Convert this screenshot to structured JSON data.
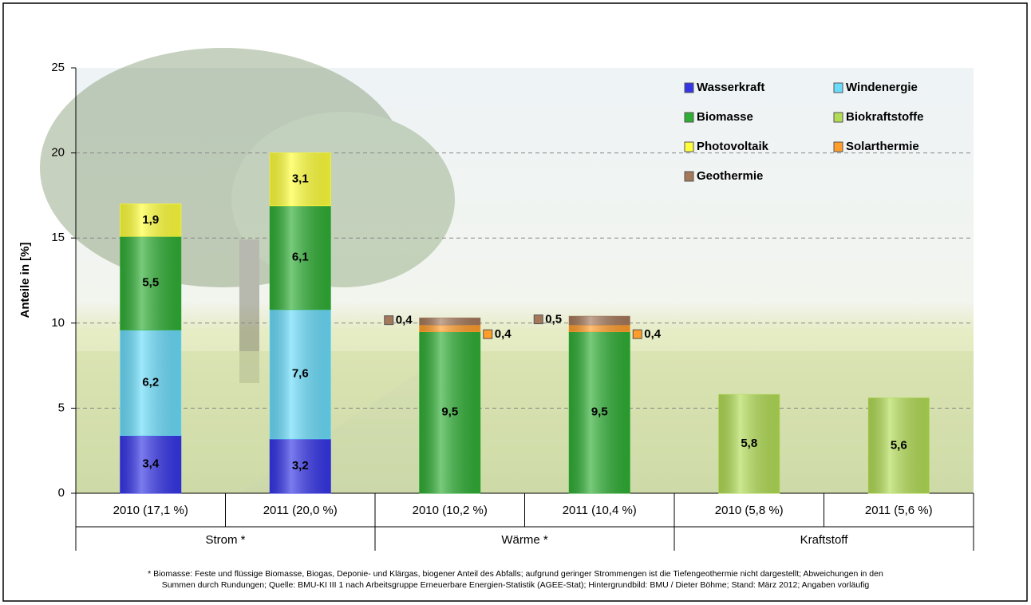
{
  "chart_data": {
    "type": "stacked_bar",
    "y_label": "Anteile in [%]",
    "categories": [
      "2010 (17,1 %)",
      "2011 (20,0 %)",
      "2010 (10,2 %)",
      "2011 (10,4 %)",
      "2010 (5,8 %)",
      "2011 (5,6 %)"
    ],
    "groups": [
      "Strom *",
      "Wärme *",
      "Kraftstoff"
    ],
    "ylim": [
      0,
      25
    ],
    "yticks": [
      0,
      5,
      10,
      15,
      20,
      25
    ],
    "grid": true,
    "legend": "top-right",
    "series": [
      {
        "name": "Wasserkraft",
        "color": "#3535e8",
        "label_color": "#ffffff",
        "values": [
          3.4,
          3.2,
          null,
          null,
          null,
          null
        ],
        "value_labels": [
          "3,4",
          "3,2",
          null,
          null,
          null,
          null
        ]
      },
      {
        "name": "Windenergie",
        "color": "#6adcfa",
        "label_color": "#000000",
        "values": [
          6.2,
          7.6,
          null,
          null,
          null,
          null
        ],
        "value_labels": [
          "6,2",
          "7,6",
          null,
          null,
          null,
          null
        ]
      },
      {
        "name": "Biomasse",
        "color": "#2fae34",
        "label_color": "#000000",
        "values": [
          5.5,
          6.1,
          9.5,
          9.5,
          null,
          null
        ],
        "value_labels": [
          "5,5",
          "6,1",
          "9,5",
          "9,5",
          null,
          null
        ]
      },
      {
        "name": "Biokraftstoffe",
        "color": "#b2dc55",
        "label_color": "#000000",
        "values": [
          null,
          null,
          null,
          null,
          5.8,
          5.6
        ],
        "value_labels": [
          null,
          null,
          null,
          null,
          "5,8",
          "5,6"
        ]
      },
      {
        "name": "Photovoltaik",
        "color": "#ffff3a",
        "label_color": "#000000",
        "values": [
          1.9,
          3.1,
          null,
          null,
          null,
          null
        ],
        "value_labels": [
          "1,9",
          "3,1",
          null,
          null,
          null,
          null
        ]
      },
      {
        "name": "Solarthermie",
        "color": "#ff9c2a",
        "label_color": "#000000",
        "label_position": "right",
        "values": [
          null,
          null,
          0.4,
          0.4,
          null,
          null
        ],
        "value_labels": [
          null,
          null,
          "0,4",
          "0,4",
          null,
          null
        ]
      },
      {
        "name": "Geothermie",
        "color": "#a4785a",
        "label_color": "#000000",
        "label_position": "left",
        "values": [
          null,
          null,
          0.4,
          0.5,
          null,
          null
        ],
        "value_labels": [
          null,
          null,
          "0,4",
          "0,5",
          null,
          null
        ]
      }
    ],
    "footnote": [
      "* Biomasse: Feste und flüssige Biomasse, Biogas, Deponie- und Klärgas, biogener Anteil des Abfalls; aufgrund geringer Strommengen ist die Tiefengeothermie nicht dargestellt; Abweichungen in den",
      "Summen durch Rundungen; Quelle: BMU-KI III 1 nach Arbeitsgruppe Erneuerbare Energien-Statistik (AGEE-Stat); Hintergrundbild: BMU / Dieter Böhme; Stand: März 2012; Angaben vorläufig"
    ]
  }
}
